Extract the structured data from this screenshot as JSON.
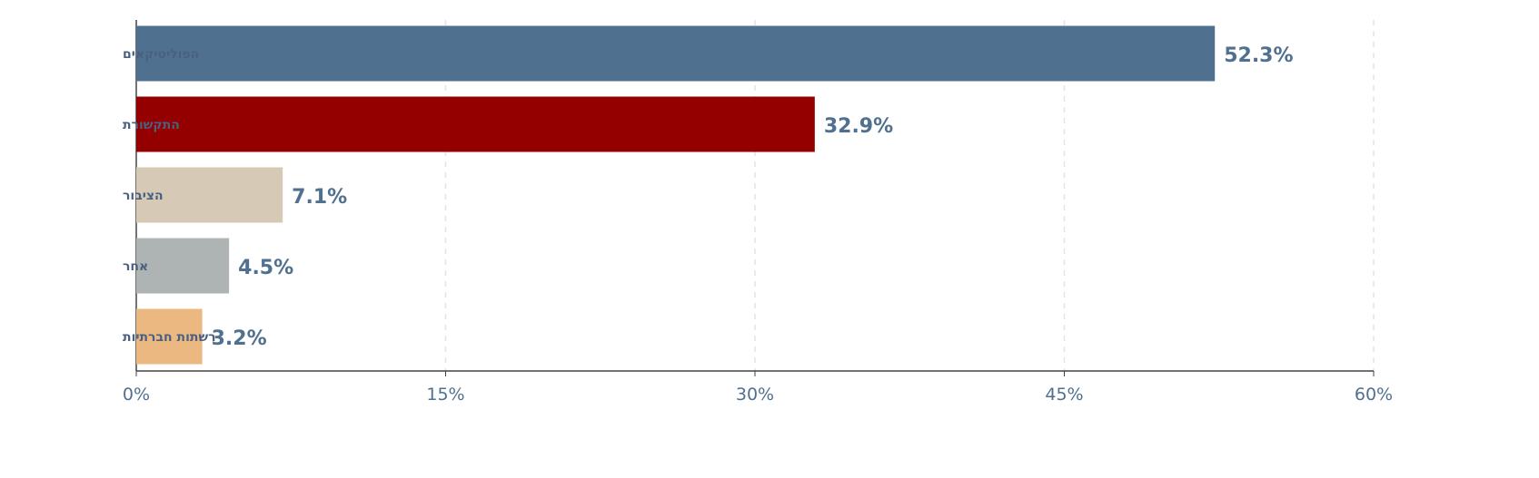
{
  "chart_data": {
    "type": "bar",
    "orientation": "horizontal",
    "title": "",
    "xlabel": "",
    "ylabel": "",
    "categories": [
      "הפוליטיקאים",
      "התקשורת",
      "הציבור",
      "אחר",
      "רשתות חברתיות"
    ],
    "values": [
      52.3,
      32.9,
      7.1,
      4.5,
      3.2
    ],
    "value_labels": [
      "52.3%",
      "32.9%",
      "7.1%",
      "4.5%",
      "3.2%"
    ],
    "colors": [
      "#50708f",
      "#940000",
      "#d6cab6",
      "#aeb3b3",
      "#ebb882"
    ],
    "xlim": [
      0,
      60
    ],
    "xticks": [
      0,
      15,
      30,
      45,
      60
    ],
    "xtick_labels": [
      "0%",
      "15%",
      "30%",
      "45%",
      "60%"
    ],
    "grid": "vertical dashed",
    "label_color": "#50708f"
  }
}
